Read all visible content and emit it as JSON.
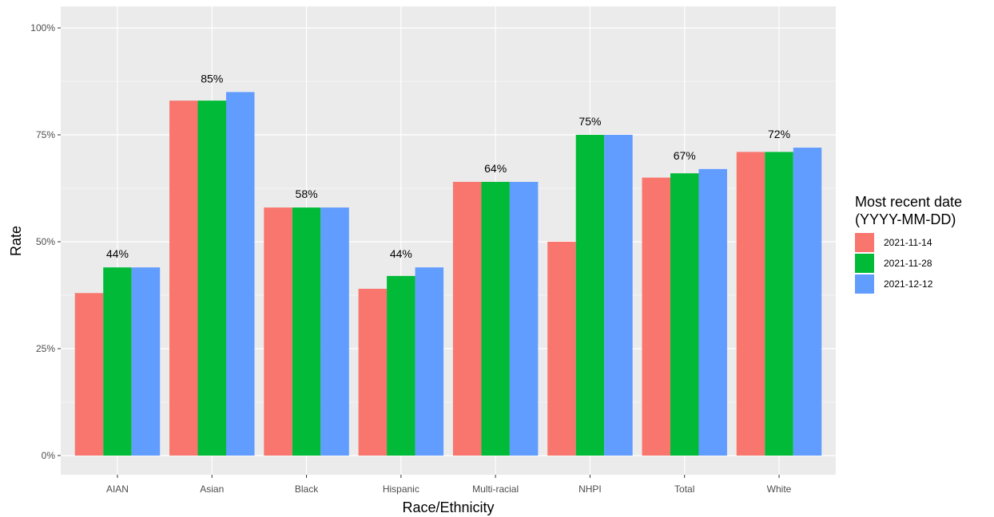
{
  "chart_data": {
    "type": "bar",
    "xlabel": "Race/Ethnicity",
    "ylabel": "Rate",
    "ylim": [
      0,
      1.0
    ],
    "y_ticks": [
      {
        "value": 0,
        "label": "0%"
      },
      {
        "value": 0.25,
        "label": "25%"
      },
      {
        "value": 0.5,
        "label": "50%"
      },
      {
        "value": 0.75,
        "label": "75%"
      },
      {
        "value": 1.0,
        "label": "100%"
      }
    ],
    "categories": [
      "AIAN",
      "Asian",
      "Black",
      "Hispanic",
      "Multi-racial",
      "NHPI",
      "Total",
      "White"
    ],
    "series": [
      {
        "name": "2021-11-14",
        "color": "#F8766D",
        "values": [
          0.38,
          0.83,
          0.58,
          0.39,
          0.64,
          0.5,
          0.65,
          0.71
        ]
      },
      {
        "name": "2021-11-28",
        "color": "#00BA38",
        "values": [
          0.44,
          0.83,
          0.58,
          0.42,
          0.64,
          0.75,
          0.66,
          0.71
        ]
      },
      {
        "name": "2021-12-12",
        "color": "#619CFF",
        "values": [
          0.44,
          0.85,
          0.58,
          0.44,
          0.64,
          0.75,
          0.67,
          0.72
        ]
      }
    ],
    "data_labels": [
      "44%",
      "85%",
      "58%",
      "44%",
      "64%",
      "75%",
      "67%",
      "72%"
    ],
    "legend": {
      "title_line1": "Most recent date",
      "title_line2": "(YYYY-MM-DD)",
      "placement": "right"
    },
    "grid": true,
    "panel_background": "#EBEBEB"
  }
}
